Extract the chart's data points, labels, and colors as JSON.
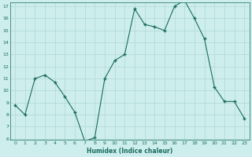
{
  "xlabel": "Humidex (Indice chaleur)",
  "ylabel": "",
  "x": [
    0,
    1,
    2,
    3,
    4,
    5,
    6,
    7,
    8,
    9,
    10,
    11,
    12,
    13,
    14,
    15,
    16,
    17,
    18,
    19,
    20,
    21,
    22,
    23
  ],
  "y": [
    8.8,
    8.0,
    11.0,
    11.3,
    10.7,
    9.5,
    8.2,
    5.8,
    6.1,
    11.0,
    12.5,
    13.0,
    16.8,
    15.5,
    15.3,
    15.0,
    17.0,
    17.5,
    16.0,
    14.3,
    10.3,
    9.1,
    9.1,
    7.7
  ],
  "line_color": "#1a6b5e",
  "marker_color": "#1a6b5e",
  "bg_color": "#cdeeed",
  "grid_color": "#b0d8d4",
  "tick_color": "#1a6b5e",
  "ylim": [
    6,
    17
  ],
  "xlim": [
    -0.5,
    23.5
  ],
  "yticks": [
    6,
    7,
    8,
    9,
    10,
    11,
    12,
    13,
    14,
    15,
    16,
    17
  ],
  "xticks": [
    0,
    1,
    2,
    3,
    4,
    5,
    6,
    7,
    8,
    9,
    10,
    11,
    12,
    13,
    14,
    15,
    16,
    17,
    18,
    19,
    20,
    21,
    22,
    23
  ]
}
